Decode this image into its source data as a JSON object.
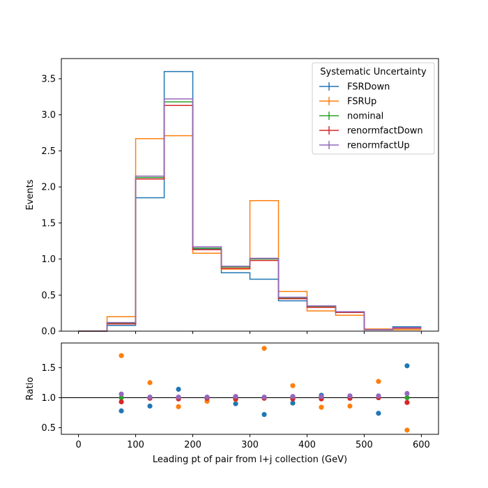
{
  "chart_data": {
    "type": "step-histogram-with-ratio",
    "bin_edges": [
      0,
      50,
      100,
      150,
      200,
      250,
      300,
      350,
      400,
      450,
      500,
      550,
      600
    ],
    "xlabel": "Leading pt of pair from l+j collection (GeV)",
    "xlim": [
      -30,
      630
    ],
    "xticks": [
      0,
      100,
      200,
      300,
      400,
      500,
      600
    ],
    "main": {
      "ylabel": "Events",
      "ylim": [
        0,
        3.78
      ],
      "yticks": [
        0.0,
        0.5,
        1.0,
        1.5,
        2.0,
        2.5,
        3.0,
        3.5
      ],
      "ytick_labels": [
        "0.0",
        "0.5",
        "1.0",
        "1.5",
        "2.0",
        "2.5",
        "3.0",
        "3.5"
      ]
    },
    "ratio": {
      "ylabel": "Ratio",
      "ylim": [
        0.39,
        1.91
      ],
      "yticks": [
        0.5,
        1.0,
        1.5
      ],
      "ytick_labels": [
        "0.5",
        "1.0",
        "1.5"
      ],
      "reference_line": 1.0
    },
    "legend": {
      "title": "Systematic Uncertainty",
      "placement": "top-right"
    },
    "series": [
      {
        "name": "FSRDown",
        "color": "#1f77b4",
        "values": [
          0.0,
          0.08,
          1.85,
          3.6,
          1.14,
          0.81,
          0.72,
          0.42,
          0.35,
          0.26,
          0.02,
          0.06
        ],
        "ratio": [
          null,
          0.78,
          0.86,
          1.14,
          0.99,
          0.9,
          0.72,
          0.91,
          1.04,
          1.02,
          0.74,
          1.53
        ]
      },
      {
        "name": "FSRUp",
        "color": "#ff7f0e",
        "values": [
          0.0,
          0.2,
          2.67,
          2.71,
          1.08,
          0.86,
          1.81,
          0.55,
          0.28,
          0.22,
          0.03,
          0.02
        ],
        "ratio": [
          null,
          1.7,
          1.25,
          0.85,
          0.94,
          0.97,
          1.82,
          1.2,
          0.84,
          0.86,
          1.27,
          0.46
        ]
      },
      {
        "name": "nominal",
        "color": "#2ca02c",
        "values": [
          0.0,
          0.11,
          2.13,
          3.18,
          1.15,
          0.89,
          1.0,
          0.46,
          0.34,
          0.26,
          0.02,
          0.04
        ],
        "ratio": [
          null,
          1.0,
          1.0,
          1.0,
          1.0,
          1.0,
          1.0,
          1.0,
          1.0,
          1.0,
          1.0,
          1.0
        ]
      },
      {
        "name": "renormfactDown",
        "color": "#d62728",
        "values": [
          0.0,
          0.1,
          2.11,
          3.13,
          1.13,
          0.87,
          0.98,
          0.45,
          0.33,
          0.26,
          0.02,
          0.04
        ],
        "ratio": [
          null,
          0.93,
          0.99,
          0.98,
          0.99,
          0.98,
          0.99,
          0.98,
          0.98,
          0.99,
          1.0,
          0.92
        ]
      },
      {
        "name": "renormfactUp",
        "color": "#9467bd",
        "values": [
          0.0,
          0.12,
          2.15,
          3.22,
          1.17,
          0.9,
          1.01,
          0.47,
          0.35,
          0.27,
          0.02,
          0.05
        ],
        "ratio": [
          null,
          1.06,
          1.01,
          1.01,
          1.01,
          1.02,
          1.01,
          1.02,
          1.02,
          1.03,
          1.03,
          1.07
        ]
      }
    ]
  }
}
